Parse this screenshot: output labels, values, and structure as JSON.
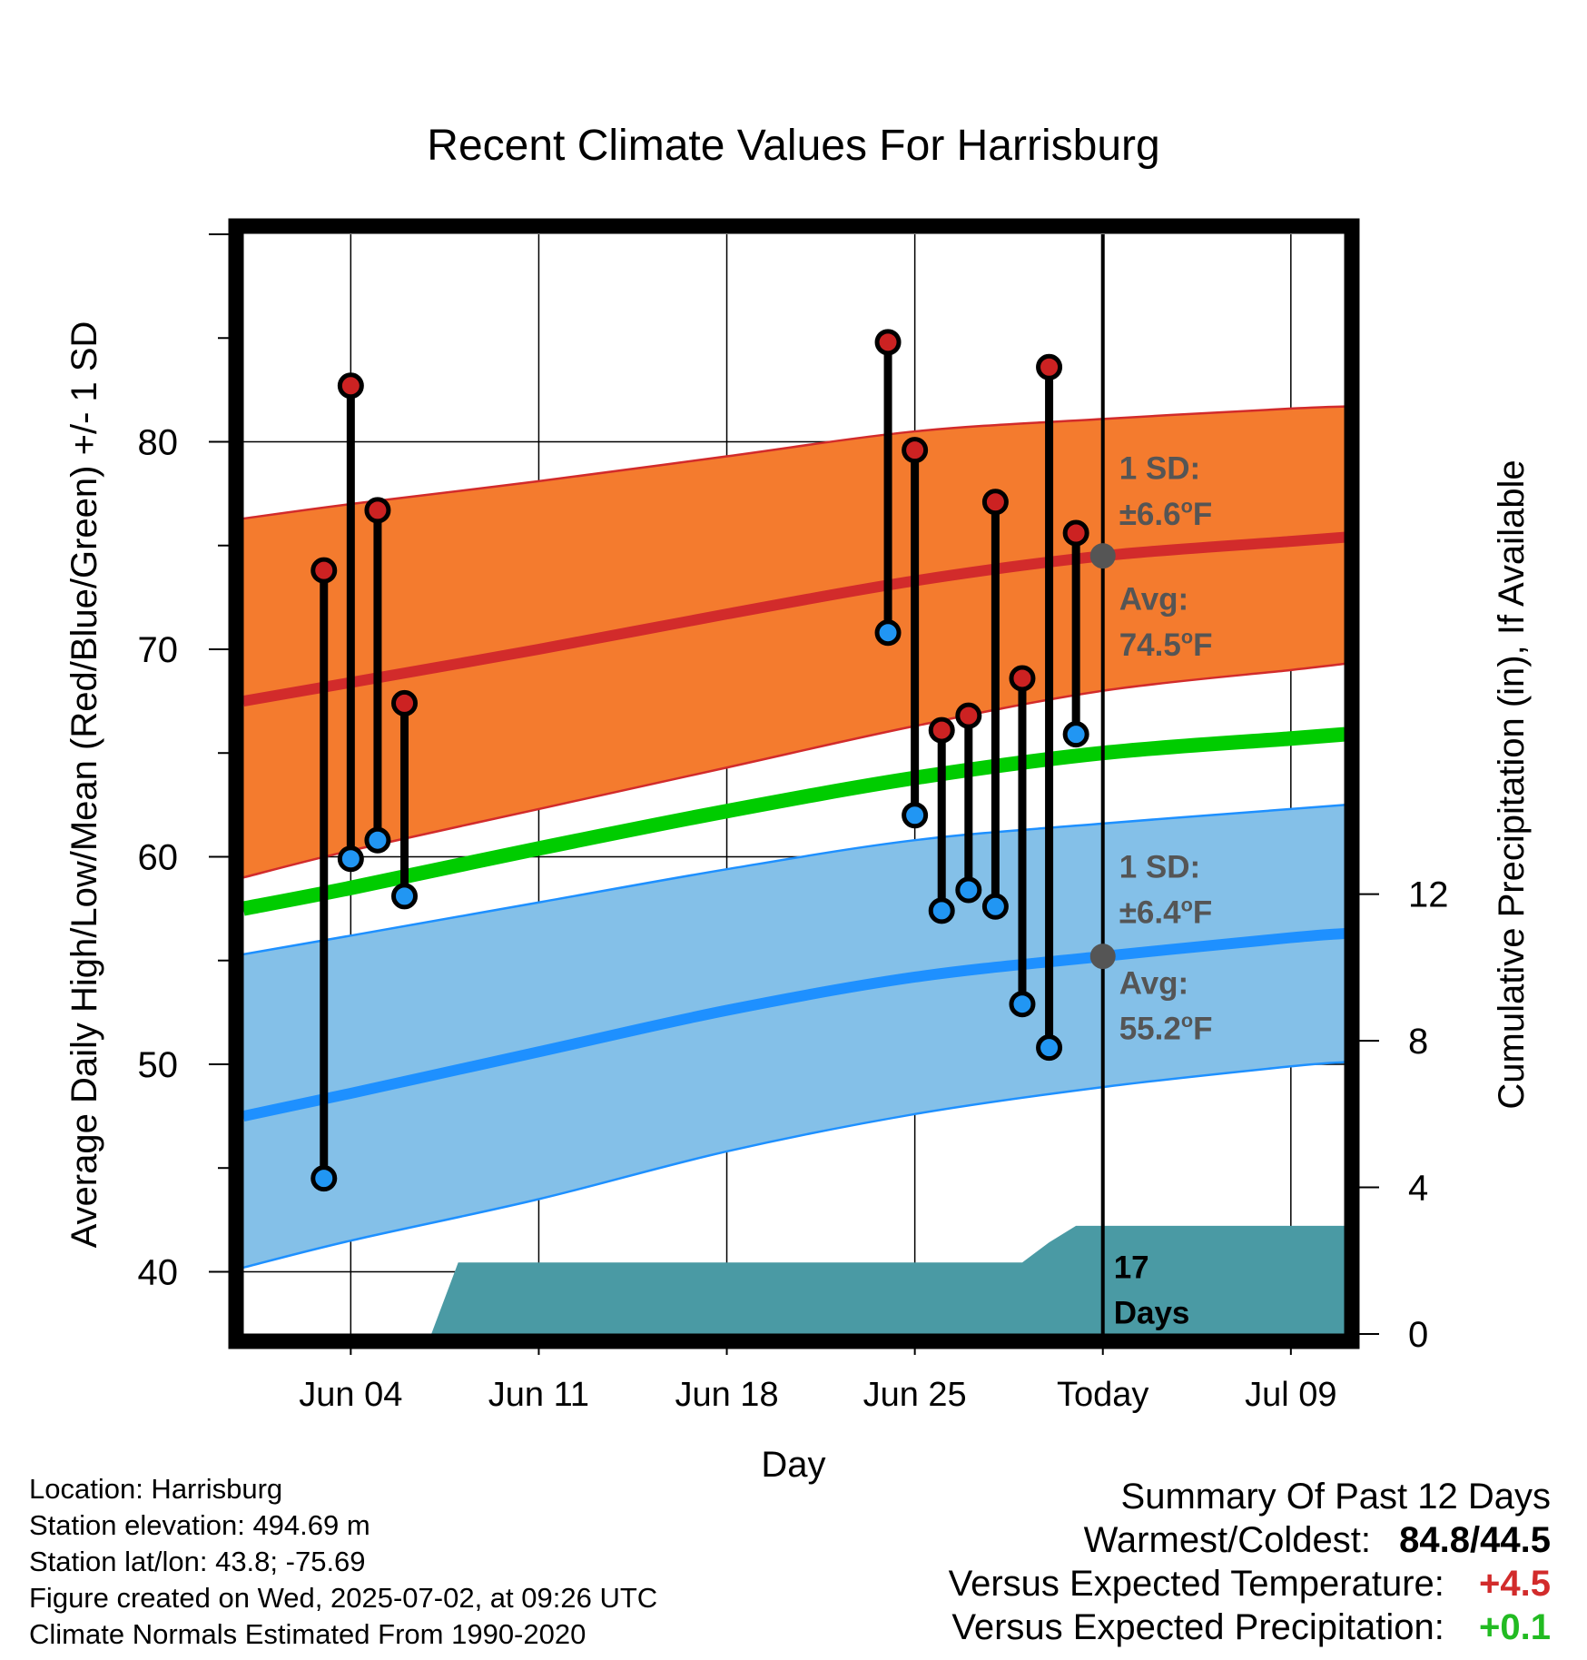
{
  "chart_data": {
    "type": "line",
    "title": "Recent Climate Values For Harrisburg",
    "xlabel": "Day",
    "ylabel": "Average Daily High/Low/Mean (Red/Blue/Green) +/- 1 SD",
    "y2label": "Cumulative Precipitation (in), If Available",
    "x_ticks": [
      "Jun 04",
      "Jun 11",
      "Jun 18",
      "Jun 25",
      "Today",
      "Jul 09"
    ],
    "y_ticks": [
      "40",
      "50",
      "60",
      "70",
      "80"
    ],
    "y2_ticks": [
      "0",
      "4",
      "8",
      "12"
    ],
    "xlim": [
      "2025-05-31",
      "2025-07-11"
    ],
    "ylim": [
      37,
      90
    ],
    "y2lim": [
      0,
      30
    ],
    "today": "2025-07-02",
    "grid": true,
    "colors": {
      "high_band": "#f47b2e",
      "high_band_edge": "#d22b2b",
      "high_mean": "#d22b2b",
      "low_band": "#84c0e8",
      "low_band_edge": "#1e90ff",
      "low_mean": "#1e90ff",
      "daily_mean": "#00cc00",
      "precip": "#4a9aa4",
      "high_dot": "#cc2222",
      "low_dot": "#2196f3",
      "avg_dot": "#555555",
      "annotation": "#555555",
      "positive_temp": "#d22b2b",
      "positive_precip": "#22bb22"
    },
    "normals": {
      "dates": [
        "2025-05-31",
        "2025-06-04",
        "2025-06-11",
        "2025-06-18",
        "2025-06-25",
        "2025-07-02",
        "2025-07-09",
        "2025-07-11"
      ],
      "high_mean": [
        67.5,
        68.4,
        70.0,
        71.7,
        73.3,
        74.5,
        75.2,
        75.4
      ],
      "high_upper": [
        76.3,
        77.0,
        78.1,
        79.3,
        80.5,
        81.1,
        81.6,
        81.7
      ],
      "high_lower": [
        59.0,
        60.3,
        62.3,
        64.3,
        66.3,
        68.0,
        69.0,
        69.3
      ],
      "mean": [
        57.5,
        58.5,
        60.4,
        62.2,
        63.8,
        65.0,
        65.7,
        65.9
      ],
      "low_mean": [
        47.5,
        48.6,
        50.6,
        52.6,
        54.2,
        55.2,
        56.1,
        56.3
      ],
      "low_upper": [
        55.3,
        56.2,
        57.8,
        59.4,
        60.8,
        61.6,
        62.3,
        62.5
      ],
      "low_lower": [
        40.2,
        41.5,
        43.5,
        45.8,
        47.6,
        48.9,
        49.9,
        50.1
      ]
    },
    "observations": [
      {
        "date": "2025-06-03",
        "high": 73.8,
        "low": 44.5
      },
      {
        "date": "2025-06-04",
        "high": 82.7,
        "low": 59.9
      },
      {
        "date": "2025-06-05",
        "high": 76.7,
        "low": 60.8
      },
      {
        "date": "2025-06-06",
        "high": 67.4,
        "low": 58.1
      },
      {
        "date": "2025-06-24",
        "high": 84.8,
        "low": 70.8
      },
      {
        "date": "2025-06-25",
        "high": 79.6,
        "low": 62.0
      },
      {
        "date": "2025-06-26",
        "high": 66.1,
        "low": 57.4
      },
      {
        "date": "2025-06-27",
        "high": 66.8,
        "low": 58.4
      },
      {
        "date": "2025-06-28",
        "high": 77.1,
        "low": 57.6
      },
      {
        "date": "2025-06-29",
        "high": 68.6,
        "low": 52.9
      },
      {
        "date": "2025-06-30",
        "high": 83.6,
        "low": 50.8
      },
      {
        "date": "2025-07-01",
        "high": 75.6,
        "low": 65.9
      }
    ],
    "precip": {
      "dates": [
        "2025-06-07",
        "2025-06-08",
        "2025-06-29",
        "2025-06-30",
        "2025-07-01",
        "2025-07-11"
      ],
      "cumulative_in": [
        0,
        1.95,
        1.95,
        2.5,
        2.95,
        2.95
      ]
    },
    "annotations": {
      "high_sd_label": "1 SD:",
      "high_sd_value": "±6.6°F",
      "high_avg_label": "Avg:",
      "high_avg_value": "74.5°F",
      "high_avg": 74.5,
      "low_sd_label": "1 SD:",
      "low_sd_value": "±6.4°F",
      "low_avg_label": "Avg:",
      "low_avg_value": "55.2°F",
      "low_avg": 55.2,
      "days_label_1": "17",
      "days_label_2": "Days"
    }
  },
  "footer": {
    "location": "Location: Harrisburg",
    "elevation": "Station elevation: 494.69 m",
    "latlon": "Station lat/lon: 43.8; -75.69",
    "created": "Figure created on Wed, 2025-07-02, at 09:26 UTC",
    "normals": "Climate Normals Estimated From 1990-2020"
  },
  "summary": {
    "title": "Summary Of Past 12 Days",
    "warmest_label": "Warmest/Coldest:",
    "warmest_value": "84.8",
    "slash": "/",
    "coldest_value": "44.5",
    "temp_label": "Versus Expected Temperature:",
    "temp_value": "+4.5",
    "precip_label": "Versus Expected Precipitation:",
    "precip_value": "+0.1"
  }
}
